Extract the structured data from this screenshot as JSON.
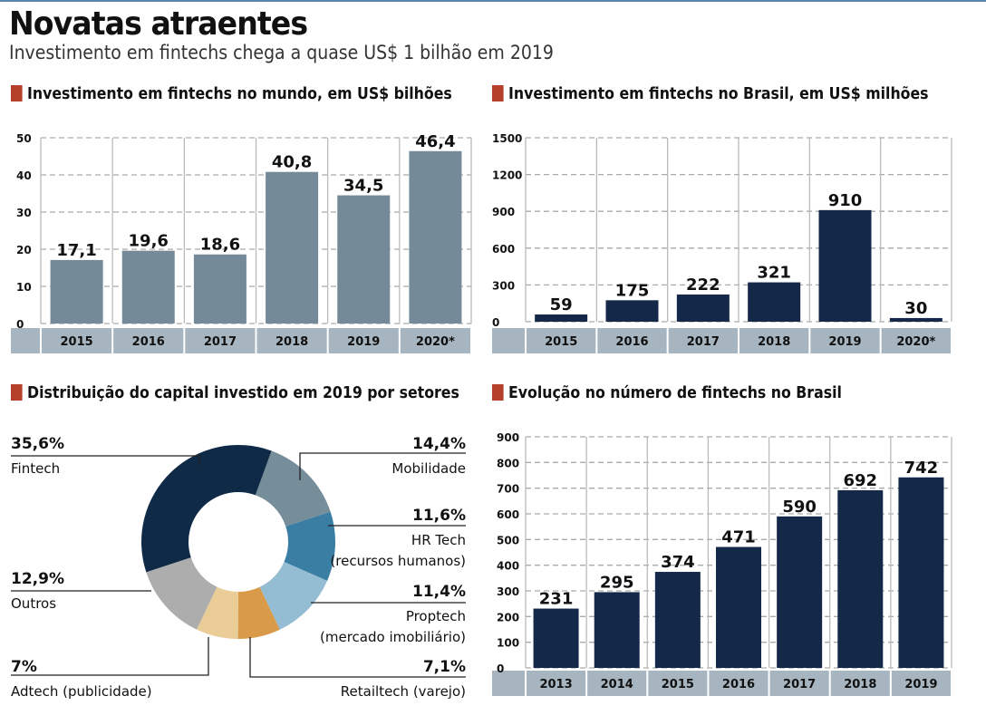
{
  "header": {
    "title": "Novatas atraentes",
    "subtitle": "Investimento em fintechs chega a quase US$ 1 bilhão em 2019"
  },
  "colors": {
    "accent_square": "#b5402a",
    "gray_bar": "#748a98",
    "navy_bar": "#14294a",
    "band": "#a6b5bf"
  },
  "chart_data": [
    {
      "id": "world",
      "type": "bar",
      "title": "Investimento em fintechs no mundo, em US$ bilhões",
      "categories": [
        "2015",
        "2016",
        "2017",
        "2018",
        "2019",
        "2020*"
      ],
      "values": [
        17.1,
        19.6,
        18.6,
        40.8,
        34.5,
        46.4
      ],
      "value_labels": [
        "17,1",
        "19,6",
        "18,6",
        "40,8",
        "34,5",
        "46,4"
      ],
      "yticks": [
        "0",
        "10",
        "20",
        "30",
        "40",
        "50"
      ],
      "ylim": [
        0,
        50
      ],
      "grid": true
    },
    {
      "id": "brazil",
      "type": "bar",
      "title": "Investimento em fintechs no Brasil, em US$ milhões",
      "categories": [
        "2015",
        "2016",
        "2017",
        "2018",
        "2019",
        "2020*"
      ],
      "values": [
        59,
        175,
        222,
        321,
        910,
        30
      ],
      "value_labels": [
        "59",
        "175",
        "222",
        "321",
        "910",
        "30"
      ],
      "yticks": [
        "0",
        "300",
        "600",
        "900",
        "1200",
        "1500"
      ],
      "ylim": [
        0,
        1500
      ],
      "grid": true
    },
    {
      "id": "sectors",
      "type": "pie",
      "title": "Distribuição do capital investido em 2019 por setores",
      "slices": [
        {
          "name": "Mobilidade",
          "value": 14.4,
          "label": "14,4%",
          "sub": "",
          "color": "#768d9a"
        },
        {
          "name": "HR Tech",
          "value": 11.6,
          "label": "11,6%",
          "sub": "(recursos humanos)",
          "color": "#3b7ea3"
        },
        {
          "name": "Proptech",
          "value": 11.4,
          "label": "11,4%",
          "sub": "(mercado imobiliário)",
          "color": "#94bcd3"
        },
        {
          "name": "Retailtech (varejo)",
          "value": 7.1,
          "label": "7,1%",
          "sub": "",
          "color": "#d99b49"
        },
        {
          "name": "Adtech (publicidade)",
          "value": 7,
          "label": "7%",
          "sub": "",
          "color": "#e9cc96"
        },
        {
          "name": "Outros",
          "value": 12.9,
          "label": "12,9%",
          "sub": "",
          "color": "#adadad"
        },
        {
          "name": "Fintech",
          "value": 35.6,
          "label": "35,6%",
          "sub": "",
          "color": "#0f2a47"
        }
      ]
    },
    {
      "id": "count",
      "type": "bar",
      "title": "Evolução no número de fintechs no Brasil",
      "categories": [
        "2013",
        "2014",
        "2015",
        "2016",
        "2017",
        "2018",
        "2019"
      ],
      "values": [
        231,
        295,
        374,
        471,
        590,
        692,
        742
      ],
      "value_labels": [
        "231",
        "295",
        "374",
        "471",
        "590",
        "692",
        "742"
      ],
      "yticks": [
        "0",
        "100",
        "200",
        "300",
        "400",
        "500",
        "600",
        "700",
        "800",
        "900"
      ],
      "ylim": [
        0,
        900
      ],
      "grid": true
    }
  ]
}
